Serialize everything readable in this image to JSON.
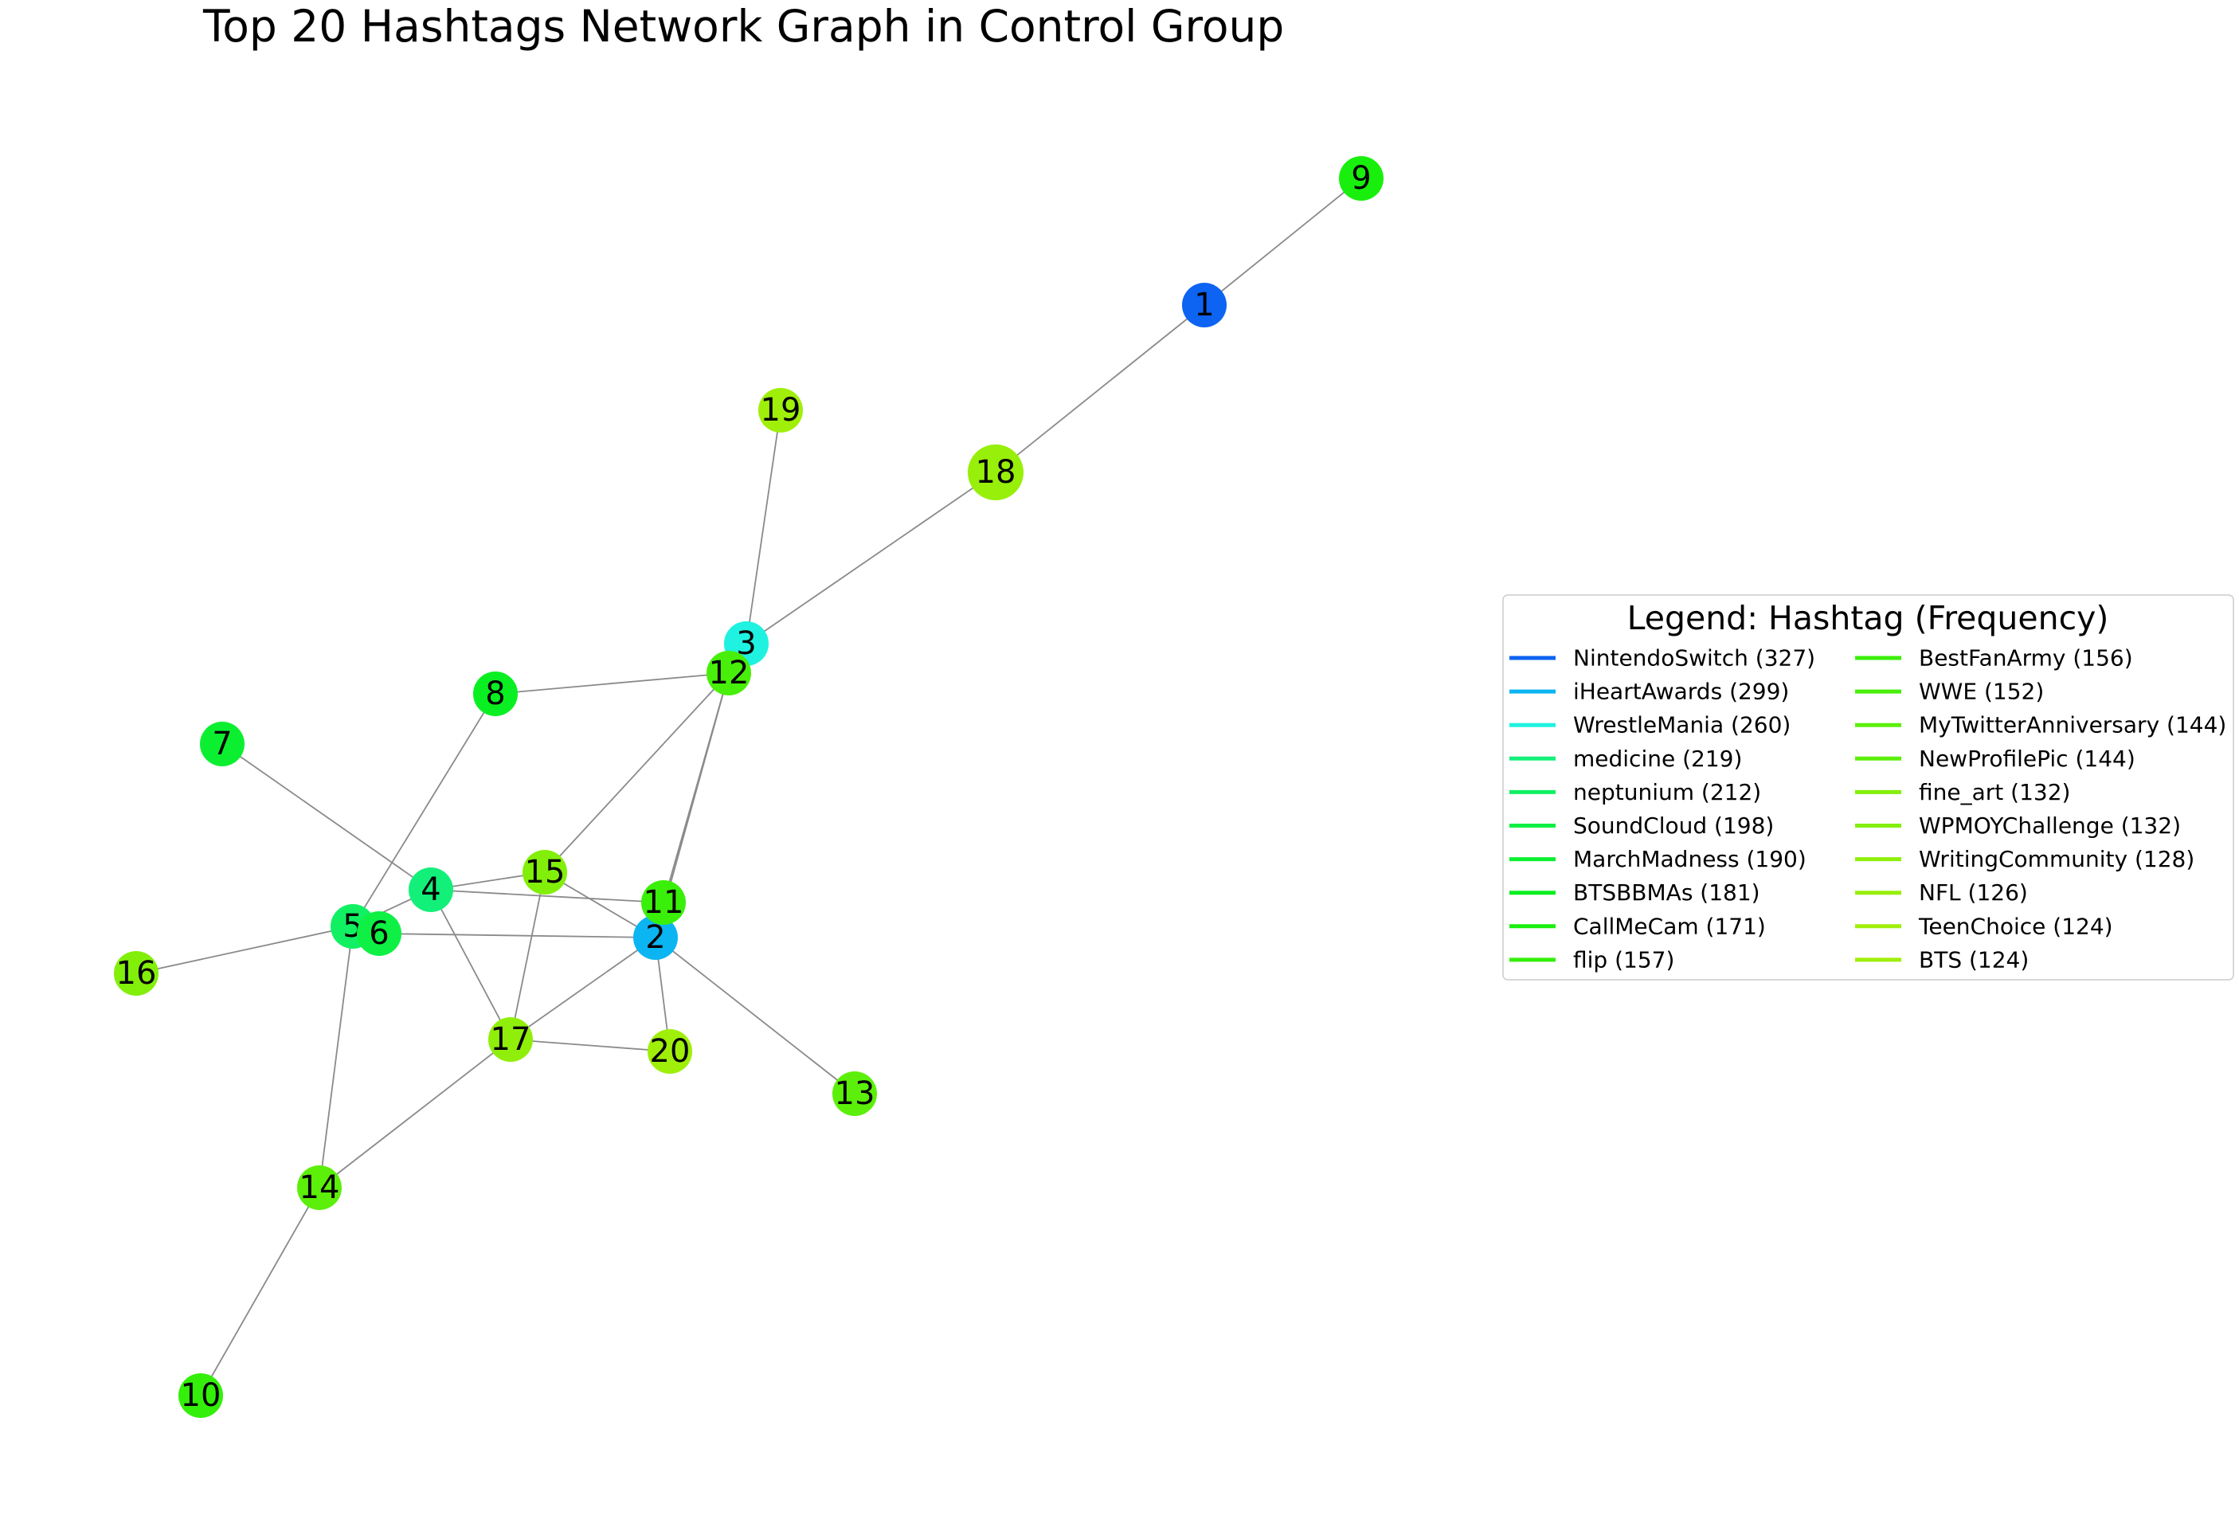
{
  "title": "Top 20 Hashtags Network Graph in Control Group",
  "legend_title": "Legend: Hashtag (Frequency)",
  "nodes": [
    {
      "id": "1",
      "color": "#0d63f2",
      "label": "NintendoSwitch (327)"
    },
    {
      "id": "2",
      "color": "#0bb5f2",
      "label": "iHeartAwards (299)"
    },
    {
      "id": "3",
      "color": "#1ff2e0",
      "label": "WrestleMania (260)"
    },
    {
      "id": "4",
      "color": "#13f07a",
      "label": "medicine (219)"
    },
    {
      "id": "5",
      "color": "#11f063",
      "label": "neptunium (212)"
    },
    {
      "id": "6",
      "color": "#0ef044",
      "label": "SoundCloud (198)"
    },
    {
      "id": "7",
      "color": "#0bef30",
      "label": "MarchMadness (190)"
    },
    {
      "id": "8",
      "color": "#0aef21",
      "label": "BTSBBMAs (181)"
    },
    {
      "id": "9",
      "color": "#19ef0c",
      "label": "CallMeCam (171)"
    },
    {
      "id": "10",
      "color": "#34ef0a",
      "label": "flip (157)"
    },
    {
      "id": "11",
      "color": "#3aef0a",
      "label": "BestFanArmy (156)"
    },
    {
      "id": "12",
      "color": "#48ef0a",
      "label": "WWE (152)"
    },
    {
      "id": "13",
      "color": "#5cef0a",
      "label": "MyTwitterAnniversary (144)"
    },
    {
      "id": "14",
      "color": "#5cef0a",
      "label": "NewProfilePic (144)"
    },
    {
      "id": "15",
      "color": "#82ef0a",
      "label": "fine_art (132)"
    },
    {
      "id": "16",
      "color": "#82ef0a",
      "label": "WPMOYChallenge (132)"
    },
    {
      "id": "17",
      "color": "#90ef0a",
      "label": "WritingCommunity (128)"
    },
    {
      "id": "18",
      "color": "#97ef0a",
      "label": "NFL (126)"
    },
    {
      "id": "19",
      "color": "#9fef0a",
      "label": "TeenChoice (124)"
    },
    {
      "id": "20",
      "color": "#9fef0a",
      "label": "BTS (124)"
    }
  ],
  "edges": [
    [
      "9",
      "1"
    ],
    [
      "1",
      "18"
    ],
    [
      "18",
      "3"
    ],
    [
      "19",
      "3"
    ],
    [
      "3",
      "12"
    ],
    [
      "8",
      "12"
    ],
    [
      "12",
      "15"
    ],
    [
      "12",
      "11"
    ],
    [
      "12",
      "2"
    ],
    [
      "8",
      "5"
    ],
    [
      "7",
      "4"
    ],
    [
      "4",
      "15"
    ],
    [
      "4",
      "11"
    ],
    [
      "4",
      "17"
    ],
    [
      "4",
      "5"
    ],
    [
      "15",
      "2"
    ],
    [
      "15",
      "17"
    ],
    [
      "6",
      "2"
    ],
    [
      "5",
      "16"
    ],
    [
      "5",
      "14"
    ],
    [
      "2",
      "17"
    ],
    [
      "2",
      "20"
    ],
    [
      "2",
      "13"
    ],
    [
      "17",
      "20"
    ],
    [
      "17",
      "14"
    ],
    [
      "14",
      "10"
    ]
  ]
}
